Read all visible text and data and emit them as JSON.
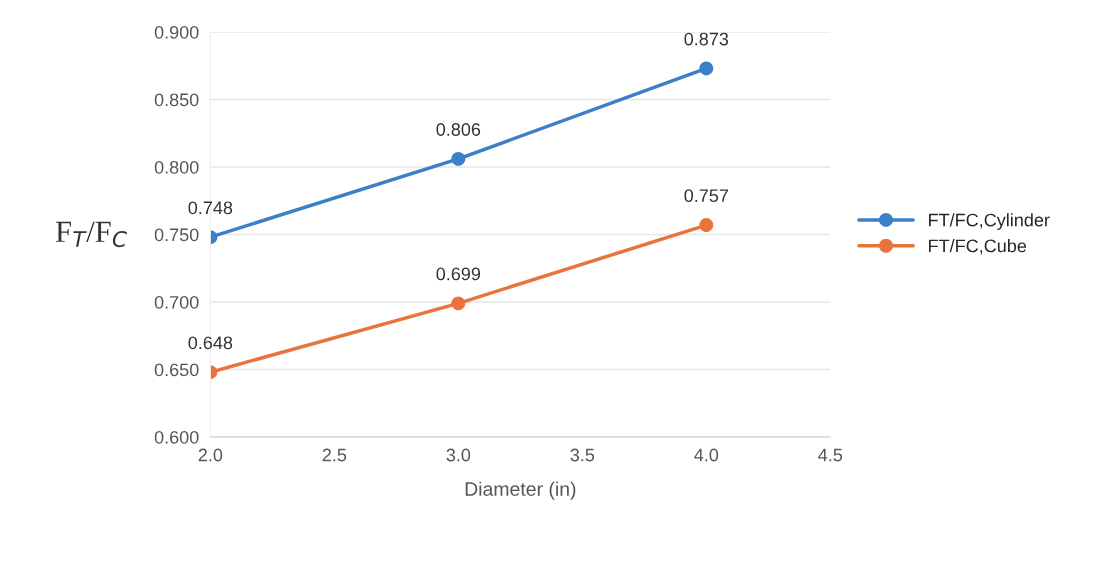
{
  "chart_data": {
    "type": "line",
    "xlabel": "Diameter (in)",
    "ylabel": "F$_{T}$/F$_{C}$",
    "x": [
      2.0,
      3.0,
      4.0
    ],
    "series": [
      {
        "name": "FT/FC,Cylinder",
        "color": "#3a7fc8",
        "values": [
          0.748,
          0.806,
          0.873
        ]
      },
      {
        "name": "FT/FC,Cube",
        "color": "#e8743b",
        "values": [
          0.648,
          0.699,
          0.757
        ]
      }
    ],
    "xlim": [
      2.0,
      4.5
    ],
    "xticks": [
      {
        "value": 2.0,
        "label": "2.0"
      },
      {
        "value": 2.5,
        "label": "2.5"
      },
      {
        "value": 3.0,
        "label": "3.0"
      },
      {
        "value": 3.5,
        "label": "3.5"
      },
      {
        "value": 4.0,
        "label": "4.0"
      },
      {
        "value": 4.5,
        "label": "4.5"
      }
    ],
    "ylim": [
      0.6,
      0.9
    ],
    "yticks": [
      {
        "value": 0.6,
        "label": "0.600"
      },
      {
        "value": 0.65,
        "label": "0.650"
      },
      {
        "value": 0.7,
        "label": "0.700"
      },
      {
        "value": 0.75,
        "label": "0.750"
      },
      {
        "value": 0.8,
        "label": "0.800"
      },
      {
        "value": 0.85,
        "label": "0.850"
      },
      {
        "value": 0.9,
        "label": "0.900"
      }
    ],
    "grid": "y",
    "legend": "right",
    "marker": "circle",
    "line_style": "solid",
    "data_labels": true
  }
}
